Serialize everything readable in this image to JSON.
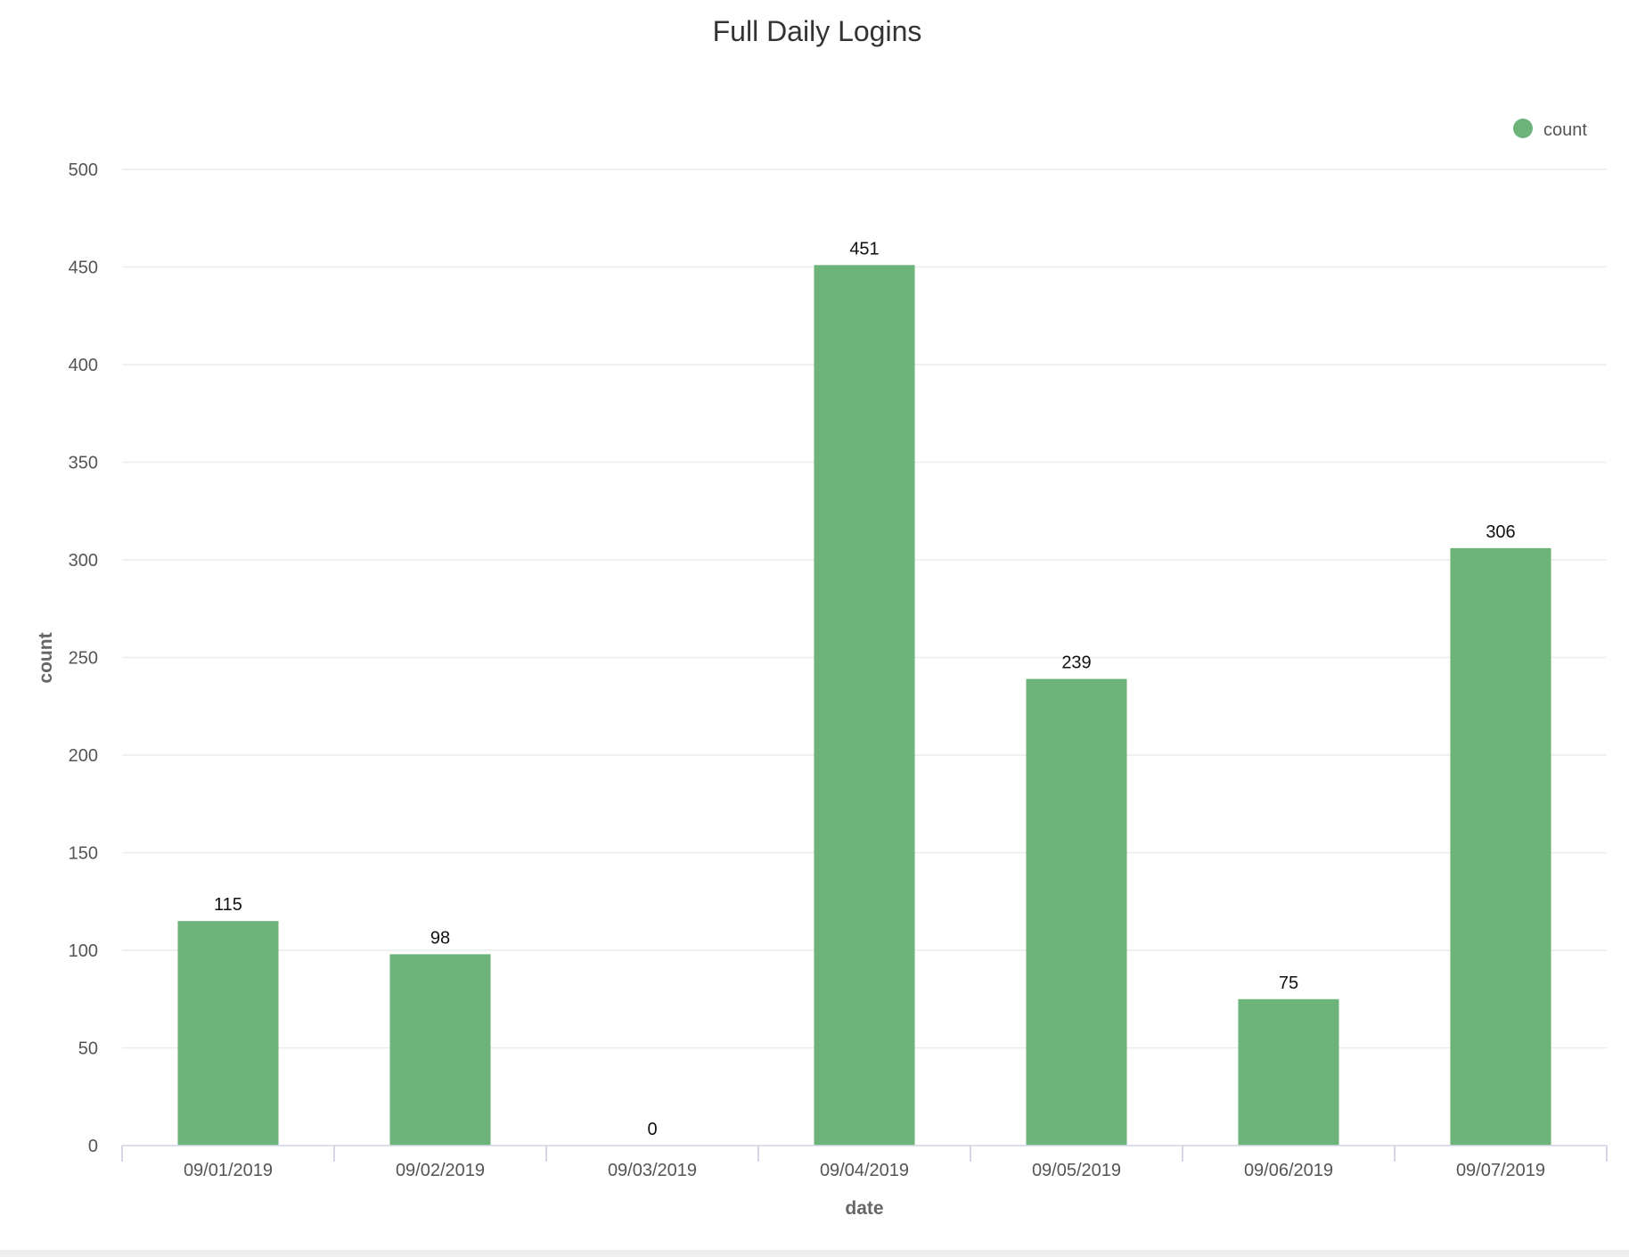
{
  "chart_data": {
    "type": "bar",
    "title": "Full Daily Logins",
    "xlabel": "date",
    "ylabel": "count",
    "categories": [
      "09/01/2019",
      "09/02/2019",
      "09/03/2019",
      "09/04/2019",
      "09/05/2019",
      "09/06/2019",
      "09/07/2019"
    ],
    "series": [
      {
        "name": "count",
        "values": [
          115,
          98,
          0,
          451,
          239,
          75,
          306
        ],
        "color": "#6db47a"
      }
    ],
    "ylim": [
      0,
      500
    ],
    "yticks": [
      0,
      50,
      100,
      150,
      200,
      250,
      300,
      350,
      400,
      450,
      500
    ],
    "grid": true,
    "legend": "top-right",
    "data_labels": true
  }
}
